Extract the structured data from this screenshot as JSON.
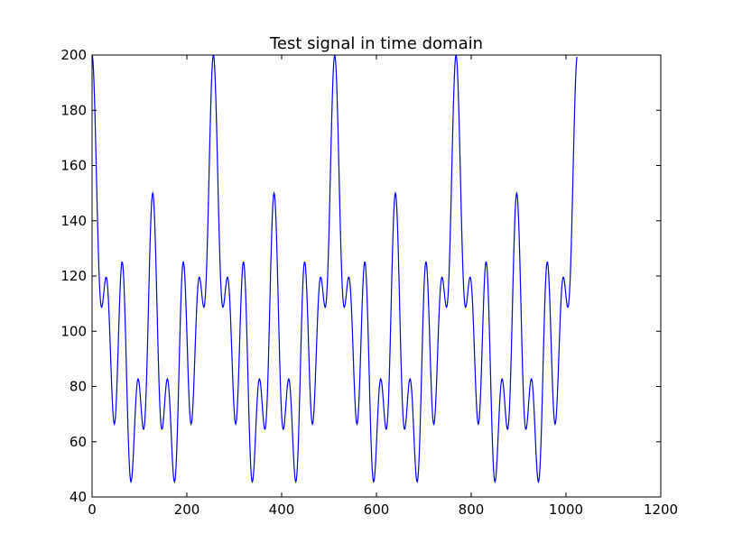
{
  "chart_data": {
    "type": "line",
    "title": "Test signal in time domain",
    "xlabel": "",
    "ylabel": "",
    "xlim": [
      0,
      1200
    ],
    "ylim": [
      40,
      200
    ],
    "xticks": [
      0,
      200,
      400,
      600,
      800,
      1000,
      1200
    ],
    "yticks": [
      40,
      60,
      80,
      100,
      120,
      140,
      160,
      180,
      200
    ],
    "grid": false,
    "line_color": "#0000ff",
    "series": [
      {
        "x_start": 0,
        "x_end": 1023,
        "x_step": 1,
        "y_offset": 100,
        "components": [
          {
            "amplitude": 25,
            "period": 256
          },
          {
            "amplitude": 25,
            "period": 128
          },
          {
            "amplitude": 25,
            "period": 64
          },
          {
            "amplitude": 25,
            "period": 32
          }
        ]
      }
    ]
  }
}
